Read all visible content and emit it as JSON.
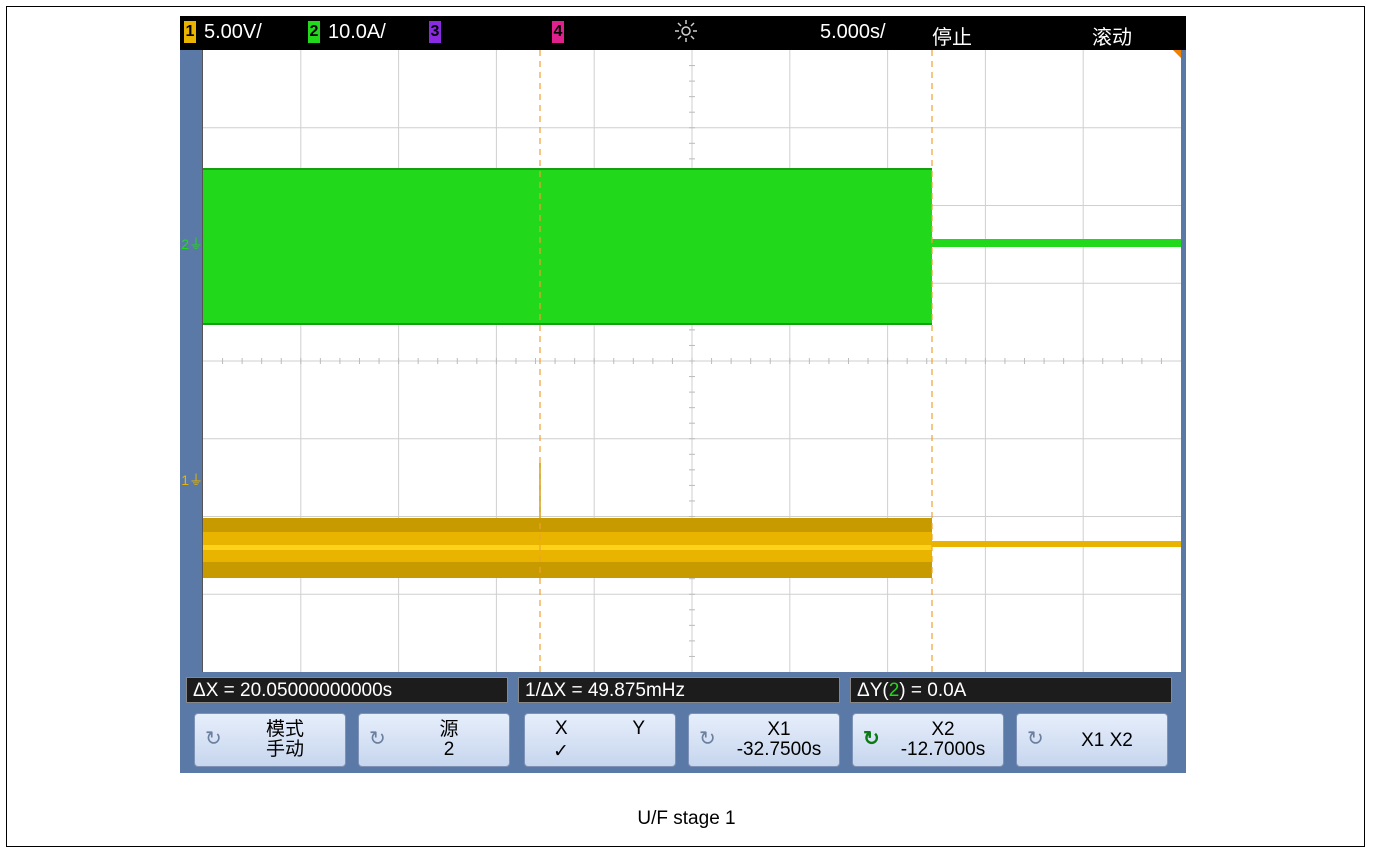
{
  "topbar": {
    "ch1_num": "1",
    "ch1_scale": "5.00V/",
    "ch2_num": "2",
    "ch2_scale": "10.0A/",
    "ch3_num": "3",
    "ch4_num": "4",
    "trigger_icon": "sun-trigger-icon",
    "timebase": "5.000s/",
    "run_state": "停止",
    "mode": "滚动"
  },
  "channels": {
    "ch2_marker": "2",
    "ch1_marker": "1"
  },
  "measurements": {
    "delta_x": "ΔX = 20.05000000000s",
    "inv_delta_x": "1/ΔX = 49.875mHz",
    "delta_y_prefix": "ΔY(",
    "delta_y_src": "2",
    "delta_y_suffix": ") = 0.0A"
  },
  "softkeys": {
    "mode_l1": "模式",
    "mode_l2": "手动",
    "source_l1": "源",
    "source_l2": "2",
    "xy_x": "X",
    "xy_y": "Y",
    "xy_check": "✓",
    "x1_l1": "X1",
    "x1_l2": "-32.7500s",
    "x2_l1": "X2",
    "x2_l2": "-12.7000s",
    "x1x2": "X1 X2"
  },
  "caption": "U/F stage 1",
  "colors": {
    "ch1": "#e8b400",
    "ch2": "#22d81a",
    "ch3": "#8a2be2",
    "ch4": "#e0208c",
    "cursor": "#f0a030",
    "background_panel": "#5b79a6"
  }
}
